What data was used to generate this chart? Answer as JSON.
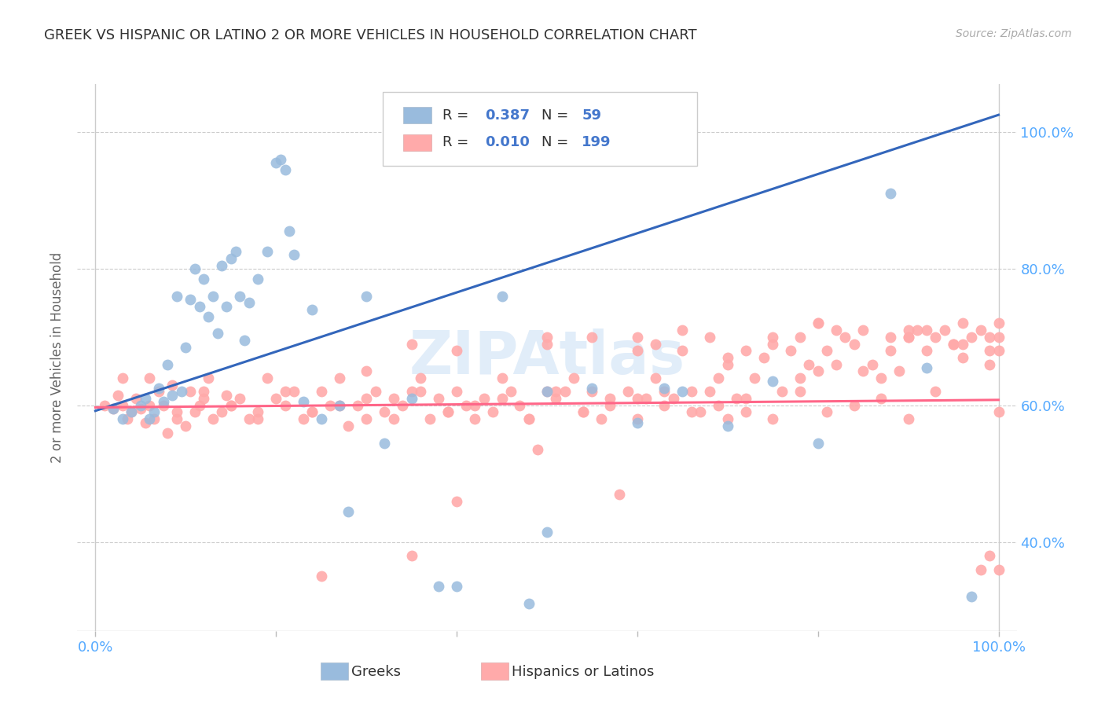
{
  "title": "GREEK VS HISPANIC OR LATINO 2 OR MORE VEHICLES IN HOUSEHOLD CORRELATION CHART",
  "source": "Source: ZipAtlas.com",
  "ylabel": "2 or more Vehicles in Household",
  "color_blue": "#99BBDD",
  "color_pink": "#FFAAAA",
  "color_line_blue": "#3366BB",
  "color_line_pink": "#FF6688",
  "color_axis_labels": "#55AAFF",
  "color_legend_rn": "#4477CC",
  "color_title": "#333333",
  "color_source": "#AAAAAA",
  "color_ylabel": "#666666",
  "legend_label1": "Greeks",
  "legend_label2": "Hispanics or Latinos",
  "watermark": "ZIPAtlas",
  "xlim": [
    -0.02,
    1.02
  ],
  "ylim": [
    0.27,
    1.07
  ],
  "yticks": [
    0.4,
    0.6,
    0.8,
    1.0
  ],
  "ytick_labels": [
    "40.0%",
    "60.0%",
    "80.0%",
    "100.0%"
  ],
  "xticks": [
    0.0,
    0.2,
    0.4,
    0.6,
    0.8,
    1.0
  ],
  "blue_trendline_x": [
    0.0,
    1.0
  ],
  "blue_trendline_y": [
    0.592,
    1.025
  ],
  "pink_trendline_x": [
    0.0,
    1.0
  ],
  "pink_trendline_y": [
    0.597,
    0.608
  ],
  "blue_x": [
    0.02,
    0.03,
    0.04,
    0.05,
    0.055,
    0.06,
    0.065,
    0.07,
    0.075,
    0.08,
    0.085,
    0.09,
    0.095,
    0.1,
    0.105,
    0.11,
    0.115,
    0.12,
    0.125,
    0.13,
    0.135,
    0.14,
    0.145,
    0.15,
    0.155,
    0.16,
    0.165,
    0.17,
    0.18,
    0.19,
    0.2,
    0.205,
    0.21,
    0.215,
    0.22,
    0.23,
    0.24,
    0.25,
    0.27,
    0.28,
    0.3,
    0.32,
    0.35,
    0.38,
    0.4,
    0.45,
    0.48,
    0.5,
    0.55,
    0.6,
    0.63,
    0.65,
    0.7,
    0.75,
    0.8,
    0.88,
    0.92,
    0.97,
    0.5
  ],
  "blue_y": [
    0.595,
    0.58,
    0.59,
    0.6,
    0.61,
    0.58,
    0.59,
    0.625,
    0.605,
    0.66,
    0.615,
    0.76,
    0.62,
    0.685,
    0.755,
    0.8,
    0.745,
    0.785,
    0.73,
    0.76,
    0.705,
    0.805,
    0.745,
    0.815,
    0.825,
    0.76,
    0.695,
    0.75,
    0.785,
    0.825,
    0.955,
    0.96,
    0.945,
    0.855,
    0.82,
    0.605,
    0.74,
    0.58,
    0.6,
    0.445,
    0.76,
    0.545,
    0.61,
    0.335,
    0.335,
    0.76,
    0.31,
    0.62,
    0.625,
    0.575,
    0.625,
    0.62,
    0.57,
    0.635,
    0.545,
    0.91,
    0.655,
    0.32,
    0.415
  ],
  "pink_x": [
    0.01,
    0.02,
    0.025,
    0.03,
    0.035,
    0.04,
    0.045,
    0.05,
    0.055,
    0.06,
    0.065,
    0.07,
    0.075,
    0.08,
    0.085,
    0.09,
    0.1,
    0.105,
    0.11,
    0.115,
    0.12,
    0.125,
    0.13,
    0.14,
    0.145,
    0.15,
    0.16,
    0.17,
    0.18,
    0.19,
    0.2,
    0.21,
    0.22,
    0.23,
    0.24,
    0.25,
    0.26,
    0.27,
    0.28,
    0.29,
    0.3,
    0.31,
    0.32,
    0.33,
    0.34,
    0.35,
    0.36,
    0.37,
    0.38,
    0.39,
    0.4,
    0.41,
    0.42,
    0.43,
    0.44,
    0.45,
    0.46,
    0.47,
    0.48,
    0.49,
    0.5,
    0.51,
    0.52,
    0.53,
    0.54,
    0.55,
    0.56,
    0.57,
    0.58,
    0.59,
    0.6,
    0.61,
    0.62,
    0.63,
    0.64,
    0.65,
    0.66,
    0.67,
    0.68,
    0.69,
    0.7,
    0.71,
    0.72,
    0.73,
    0.74,
    0.75,
    0.76,
    0.77,
    0.78,
    0.79,
    0.8,
    0.81,
    0.82,
    0.83,
    0.84,
    0.85,
    0.86,
    0.87,
    0.88,
    0.89,
    0.9,
    0.91,
    0.92,
    0.93,
    0.94,
    0.95,
    0.96,
    0.97,
    0.98,
    0.99,
    1.0,
    0.03,
    0.06,
    0.09,
    0.12,
    0.15,
    0.18,
    0.21,
    0.24,
    0.27,
    0.3,
    0.33,
    0.36,
    0.39,
    0.42,
    0.45,
    0.48,
    0.51,
    0.54,
    0.57,
    0.6,
    0.63,
    0.66,
    0.69,
    0.72,
    0.75,
    0.78,
    0.81,
    0.84,
    0.87,
    0.9,
    0.93,
    0.96,
    0.99,
    0.4,
    0.5,
    0.6,
    0.7,
    0.8,
    0.9,
    1.0,
    0.35,
    0.55,
    0.65,
    0.75,
    0.85,
    0.95,
    0.98,
    0.99,
    1.0,
    0.62,
    0.68,
    0.72,
    0.78,
    0.82,
    0.88,
    0.92,
    0.96,
    0.99,
    1.0,
    0.3,
    0.4,
    0.5,
    0.6,
    0.7,
    0.8,
    0.9,
    1.0,
    0.25,
    0.35
  ],
  "pink_y": [
    0.6,
    0.595,
    0.615,
    0.6,
    0.58,
    0.59,
    0.61,
    0.595,
    0.575,
    0.64,
    0.58,
    0.62,
    0.6,
    0.56,
    0.63,
    0.58,
    0.57,
    0.62,
    0.59,
    0.6,
    0.62,
    0.64,
    0.58,
    0.59,
    0.615,
    0.6,
    0.61,
    0.58,
    0.59,
    0.64,
    0.61,
    0.6,
    0.62,
    0.58,
    0.59,
    0.62,
    0.6,
    0.64,
    0.57,
    0.6,
    0.58,
    0.62,
    0.59,
    0.61,
    0.6,
    0.62,
    0.64,
    0.58,
    0.61,
    0.59,
    0.62,
    0.6,
    0.58,
    0.61,
    0.59,
    0.64,
    0.62,
    0.6,
    0.58,
    0.535,
    0.62,
    0.61,
    0.62,
    0.64,
    0.59,
    0.62,
    0.58,
    0.61,
    0.47,
    0.62,
    0.58,
    0.61,
    0.64,
    0.6,
    0.61,
    0.68,
    0.62,
    0.59,
    0.62,
    0.64,
    0.58,
    0.61,
    0.59,
    0.64,
    0.67,
    0.69,
    0.62,
    0.68,
    0.64,
    0.66,
    0.65,
    0.68,
    0.66,
    0.7,
    0.69,
    0.65,
    0.66,
    0.64,
    0.68,
    0.65,
    0.7,
    0.71,
    0.68,
    0.7,
    0.71,
    0.69,
    0.72,
    0.7,
    0.71,
    0.68,
    0.59,
    0.64,
    0.6,
    0.59,
    0.61,
    0.6,
    0.58,
    0.62,
    0.59,
    0.6,
    0.61,
    0.58,
    0.62,
    0.59,
    0.6,
    0.61,
    0.58,
    0.62,
    0.59,
    0.6,
    0.61,
    0.62,
    0.59,
    0.6,
    0.61,
    0.58,
    0.62,
    0.59,
    0.6,
    0.61,
    0.58,
    0.62,
    0.67,
    0.66,
    0.68,
    0.69,
    0.7,
    0.66,
    0.72,
    0.7,
    0.72,
    0.69,
    0.7,
    0.71,
    0.7,
    0.71,
    0.69,
    0.36,
    0.38,
    0.36,
    0.69,
    0.7,
    0.68,
    0.7,
    0.71,
    0.7,
    0.71,
    0.69,
    0.7,
    0.68,
    0.65,
    0.46,
    0.7,
    0.68,
    0.67,
    0.72,
    0.71,
    0.7,
    0.35,
    0.38
  ]
}
